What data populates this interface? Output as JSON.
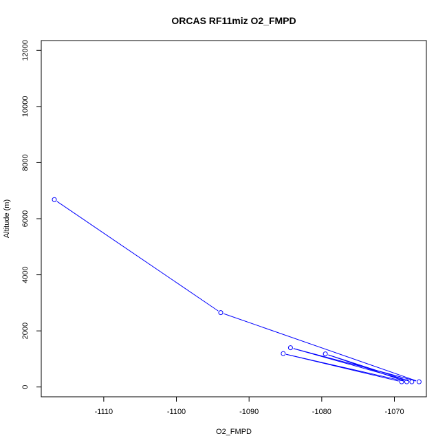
{
  "chart_data": {
    "type": "line",
    "title": "ORCAS RF11miz O2_FMPD",
    "xlabel": "O2_FMPD",
    "ylabel": "Altitude (m)",
    "xlim": [
      -1118.6,
      -1065.6
    ],
    "ylim": [
      -350,
      12350
    ],
    "x_ticks": [
      -1110,
      -1100,
      -1090,
      -1080,
      -1070
    ],
    "y_ticks": [
      0,
      2000,
      4000,
      6000,
      8000,
      10000,
      12000
    ],
    "series": [
      {
        "color": "#0000ff",
        "marker": "open-circle",
        "points": [
          {
            "x": -1116.8,
            "y": 6680
          },
          {
            "x": -1093.9,
            "y": 2650
          },
          {
            "x": -1066.6,
            "y": 185
          },
          {
            "x": -1084.3,
            "y": 1400
          },
          {
            "x": -1067.6,
            "y": 185
          },
          {
            "x": -1079.5,
            "y": 1180
          },
          {
            "x": -1068.3,
            "y": 185
          },
          {
            "x": -1085.3,
            "y": 1190
          },
          {
            "x": -1069.0,
            "y": 185
          }
        ]
      }
    ]
  }
}
